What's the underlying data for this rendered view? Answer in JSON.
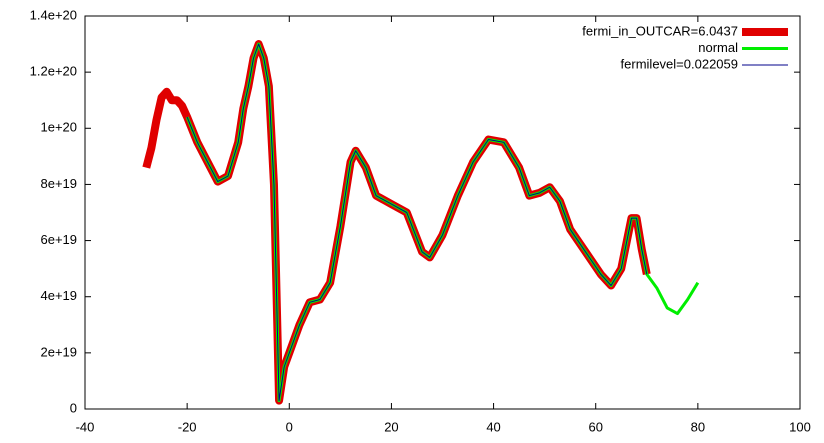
{
  "chart_data": {
    "type": "line",
    "x": [
      -28,
      -27,
      -26,
      -25,
      -24,
      -23,
      -22,
      -21,
      -20,
      -18,
      -16,
      -14,
      -12,
      -10,
      -9,
      -8,
      -7,
      -6,
      -5,
      -4,
      -3,
      -2,
      -1,
      0,
      2,
      4,
      6,
      8,
      10,
      12,
      13,
      15,
      17,
      20,
      23,
      26,
      27.5,
      30,
      33,
      36,
      39,
      42,
      45,
      47,
      49,
      51,
      53,
      55,
      58,
      61,
      63,
      65,
      67,
      68,
      69,
      70,
      72,
      74,
      76,
      78,
      80
    ],
    "series": [
      {
        "name": "fermi_in_OUTCAR=6.0437",
        "color": "#e00000",
        "width": 8,
        "values": [
          8.6e+19,
          9.3e+19,
          1.03e+20,
          1.11e+20,
          1.13e+20,
          1.1e+20,
          1.1e+20,
          1.08e+20,
          1.04e+20,
          9.5e+19,
          8.8e+19,
          8.1e+19,
          8.3e+19,
          9.5e+19,
          1.07e+20,
          1.15e+20,
          1.25e+20,
          1.3e+20,
          1.25e+20,
          1.15e+20,
          8e+19,
          3e+18,
          1.5e+19,
          2e+19,
          3e+19,
          3.8e+19,
          3.9e+19,
          4.5e+19,
          6.5e+19,
          8.8e+19,
          9.2e+19,
          8.6e+19,
          7.6e+19,
          7.3e+19,
          7e+19,
          5.6e+19,
          5.4e+19,
          6.2e+19,
          7.6e+19,
          8.8e+19,
          9.6e+19,
          9.5e+19,
          8.6e+19,
          7.6e+19,
          7.7e+19,
          7.9e+19,
          7.4e+19,
          6.4e+19,
          5.6e+19,
          4.8e+19,
          4.4e+19,
          5e+19,
          6.8e+19,
          6.8e+19,
          5.7e+19,
          4.8e+19,
          null,
          null,
          null,
          null,
          null
        ]
      },
      {
        "name": "normal",
        "color": "#00ee00",
        "width": 3,
        "values": [
          null,
          null,
          null,
          null,
          null,
          null,
          null,
          null,
          1.04e+20,
          9.5e+19,
          8.8e+19,
          8.1e+19,
          8.3e+19,
          9.5e+19,
          1.07e+20,
          1.15e+20,
          1.25e+20,
          1.3e+20,
          1.25e+20,
          1.15e+20,
          8e+19,
          3e+18,
          1.5e+19,
          2e+19,
          3e+19,
          3.8e+19,
          3.9e+19,
          4.5e+19,
          6.5e+19,
          8.8e+19,
          9.2e+19,
          8.6e+19,
          7.6e+19,
          7.3e+19,
          7e+19,
          5.6e+19,
          5.4e+19,
          6.2e+19,
          7.6e+19,
          8.8e+19,
          9.6e+19,
          9.5e+19,
          8.6e+19,
          7.6e+19,
          7.7e+19,
          7.9e+19,
          7.4e+19,
          6.4e+19,
          5.6e+19,
          4.8e+19,
          4.4e+19,
          5e+19,
          6.8e+19,
          6.8e+19,
          5.7e+19,
          4.8e+19,
          4.3e+19,
          3.6e+19,
          3.4e+19,
          3.9e+19,
          4.5e+19
        ]
      },
      {
        "name": "fermilevel=0.022059",
        "color": "#00008b",
        "width": 1,
        "values": [
          null,
          null,
          null,
          null,
          null,
          null,
          null,
          null,
          1.04e+20,
          9.5e+19,
          8.8e+19,
          8.1e+19,
          8.3e+19,
          9.5e+19,
          1.07e+20,
          1.15e+20,
          1.25e+20,
          1.3e+20,
          1.25e+20,
          1.15e+20,
          8e+19,
          3e+18,
          1.5e+19,
          2e+19,
          3e+19,
          3.8e+19,
          3.9e+19,
          4.5e+19,
          6.5e+19,
          8.8e+19,
          9.2e+19,
          8.6e+19,
          7.6e+19,
          7.3e+19,
          7e+19,
          5.6e+19,
          5.4e+19,
          6.2e+19,
          7.6e+19,
          8.8e+19,
          9.6e+19,
          9.5e+19,
          8.6e+19,
          7.6e+19,
          7.7e+19,
          7.9e+19,
          7.4e+19,
          6.4e+19,
          5.6e+19,
          4.8e+19,
          4.4e+19,
          5e+19,
          6.8e+19,
          6.8e+19,
          5.7e+19,
          4.8e+19,
          null,
          null,
          null,
          null,
          null
        ]
      }
    ],
    "xlim": [
      -40,
      100
    ],
    "xticks": [
      -40,
      -20,
      0,
      20,
      40,
      60,
      80,
      100
    ],
    "ylim": [
      0,
      1.4e+20
    ],
    "yticks": [
      0,
      {
        "value": 2e+19,
        "label": "2e+19"
      },
      {
        "value": 4e+19,
        "label": "4e+19"
      },
      {
        "value": 6e+19,
        "label": "6e+19"
      },
      {
        "value": 8e+19,
        "label": "8e+19"
      },
      {
        "value": 1e+20,
        "label": "1e+20"
      },
      {
        "value": 1.2e+20,
        "label": "1.2e+20"
      },
      {
        "value": 1.4e+20,
        "label": "1.4e+20"
      }
    ],
    "legend": "top-right"
  }
}
